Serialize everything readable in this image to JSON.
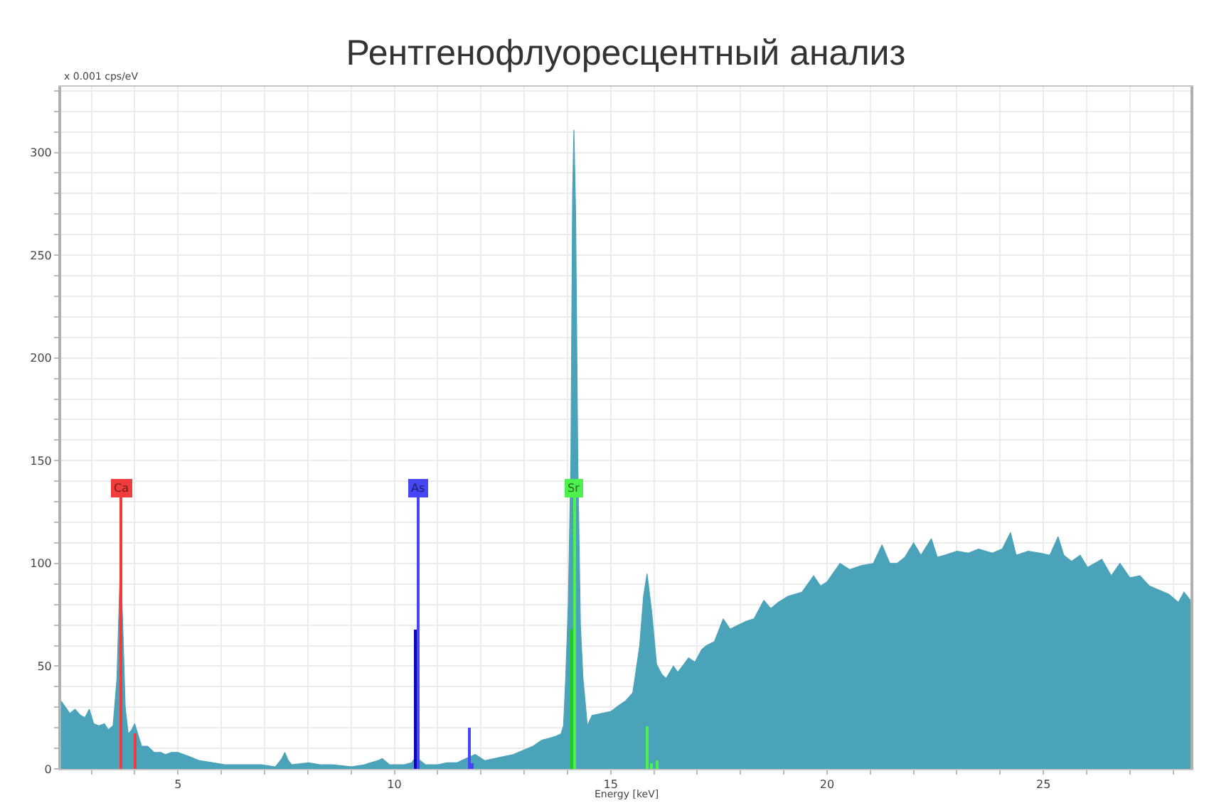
{
  "chart_data": {
    "type": "area",
    "title": "Рентгенофлуоресцентный анализ",
    "xlabel": "Energy [keV]",
    "ylabel": "x 0.001 cps/eV",
    "xlim": [
      2.3,
      28.4
    ],
    "ylim": [
      0,
      332
    ],
    "xticks": [
      {
        "value": 3,
        "label": null
      },
      {
        "value": 4,
        "label": null
      },
      5,
      {
        "value": 6,
        "label": null
      },
      {
        "value": 7,
        "label": null
      },
      {
        "value": 8,
        "label": null
      },
      {
        "value": 9,
        "label": null
      },
      10,
      {
        "value": 11,
        "label": null
      },
      {
        "value": 12,
        "label": null
      },
      {
        "value": 13,
        "label": null
      },
      {
        "value": 14,
        "label": null
      },
      15,
      {
        "value": 16,
        "label": null
      },
      {
        "value": 17,
        "label": null
      },
      {
        "value": 18,
        "label": null
      },
      {
        "value": 19,
        "label": null
      },
      20,
      {
        "value": 21,
        "label": null
      },
      {
        "value": 22,
        "label": null
      },
      {
        "value": 23,
        "label": null
      },
      {
        "value": 24,
        "label": null
      },
      25,
      {
        "value": 26,
        "label": null
      },
      {
        "value": 27,
        "label": null
      },
      {
        "value": 28,
        "label": null
      }
    ],
    "yticks": [
      0,
      {
        "value": 10,
        "label": null
      },
      {
        "value": 20,
        "label": null
      },
      {
        "value": 30,
        "label": null
      },
      {
        "value": 40,
        "label": null
      },
      50,
      {
        "value": 60,
        "label": null
      },
      {
        "value": 70,
        "label": null
      },
      {
        "value": 80,
        "label": null
      },
      {
        "value": 90,
        "label": null
      },
      100,
      {
        "value": 110,
        "label": null
      },
      {
        "value": 120,
        "label": null
      },
      {
        "value": 130,
        "label": null
      },
      {
        "value": 140,
        "label": null
      },
      150,
      {
        "value": 160,
        "label": null
      },
      {
        "value": 170,
        "label": null
      },
      {
        "value": 180,
        "label": null
      },
      {
        "value": 190,
        "label": null
      },
      200,
      {
        "value": 210,
        "label": null
      },
      {
        "value": 220,
        "label": null
      },
      {
        "value": 230,
        "label": null
      },
      {
        "value": 240,
        "label": null
      },
      250,
      {
        "value": 260,
        "label": null
      },
      {
        "value": 270,
        "label": null
      },
      {
        "value": 280,
        "label": null
      },
      {
        "value": 290,
        "label": null
      },
      300,
      {
        "value": 310,
        "label": null
      },
      {
        "value": 320,
        "label": null
      },
      {
        "value": 330,
        "label": null
      }
    ],
    "grid": true,
    "series": [
      {
        "color": "#4ba3b9",
        "x": [
          2.3,
          2.4,
          2.5,
          2.62,
          2.75,
          2.85,
          2.95,
          3.05,
          3.17,
          3.3,
          3.39,
          3.5,
          3.59,
          3.64,
          3.67,
          3.72,
          3.78,
          3.85,
          3.93,
          4.0,
          4.07,
          4.16,
          4.3,
          4.45,
          4.6,
          4.71,
          4.85,
          5.0,
          5.26,
          5.5,
          5.81,
          6.1,
          6.37,
          6.7,
          6.92,
          7.25,
          7.4,
          7.47,
          7.55,
          7.63,
          8.02,
          8.3,
          8.57,
          9.01,
          9.3,
          9.45,
          9.62,
          9.72,
          9.89,
          10.22,
          10.4,
          10.5,
          10.6,
          10.72,
          11.0,
          11.21,
          11.45,
          11.65,
          11.87,
          11.95,
          12.09,
          12.3,
          12.53,
          12.75,
          12.97,
          13.2,
          13.41,
          13.6,
          13.74,
          13.85,
          13.91,
          13.96,
          14.02,
          14.08,
          14.12,
          14.15,
          14.19,
          14.24,
          14.3,
          14.36,
          14.4,
          14.46,
          14.57,
          14.8,
          15.01,
          15.2,
          15.34,
          15.51,
          15.67,
          15.76,
          15.84,
          15.95,
          16.06,
          16.18,
          16.28,
          16.45,
          16.55,
          16.66,
          16.8,
          16.95,
          17.1,
          17.21,
          17.4,
          17.6,
          17.76,
          17.95,
          18.15,
          18.31,
          18.54,
          18.7,
          18.87,
          19.1,
          19.42,
          19.69,
          19.85,
          20.0,
          20.3,
          20.52,
          20.8,
          21.07,
          21.27,
          21.45,
          21.62,
          21.8,
          22.0,
          22.17,
          22.41,
          22.55,
          22.72,
          23.0,
          23.27,
          23.5,
          23.82,
          24.05,
          24.24,
          24.37,
          24.65,
          24.92,
          25.15,
          25.34,
          25.47,
          25.65,
          25.85,
          26.02,
          26.35,
          26.57,
          26.77,
          27.0,
          27.23,
          27.45,
          27.68,
          27.9,
          28.12,
          28.25,
          28.4
        ],
        "values": [
          33,
          30,
          27,
          29,
          26,
          25,
          29,
          22,
          21,
          22,
          19,
          21,
          44,
          80,
          102,
          72,
          30,
          17,
          19,
          22,
          17,
          11,
          11,
          8,
          8,
          7,
          8,
          8,
          6,
          4,
          3,
          2,
          2,
          2,
          2,
          1,
          5,
          8,
          4,
          2,
          3,
          2,
          2,
          1,
          2,
          3,
          4,
          5,
          2,
          2,
          3,
          6,
          4,
          2,
          2,
          3,
          3,
          5,
          7,
          6,
          4,
          5,
          6,
          7,
          9,
          11,
          14,
          15,
          16,
          17,
          21,
          44,
          80,
          150,
          280,
          311,
          270,
          150,
          70,
          44,
          35,
          21,
          26,
          27,
          28,
          31,
          33,
          37,
          60,
          84,
          95,
          76,
          51,
          46,
          44,
          50,
          47,
          50,
          54,
          52,
          58,
          60,
          62,
          73,
          68,
          70,
          72,
          73,
          82,
          78,
          81,
          84,
          86,
          94,
          89,
          91,
          100,
          97,
          99,
          100,
          109,
          100,
          100,
          103,
          110,
          104,
          112,
          103,
          104,
          106,
          105,
          107,
          105,
          107,
          115,
          104,
          106,
          105,
          104,
          113,
          104,
          101,
          104,
          98,
          102,
          94,
          100,
          93,
          94,
          89,
          87,
          85,
          81,
          86,
          82
        ]
      },
      {
        "type": "bar",
        "name": "Ca",
        "color": "#f03c3c",
        "x": [
          3.69,
          4.01
        ],
        "values": [
          132,
          17
        ]
      },
      {
        "type": "bar",
        "name": "As",
        "color": "#4646f5",
        "colors": [
          "#0a0ab4",
          "#4646f5",
          "#4646f5",
          "#4646f5"
        ],
        "x": [
          10.5,
          10.54,
          11.73,
          11.8
        ],
        "values": [
          68,
          132,
          20,
          3
        ]
      },
      {
        "type": "bar",
        "name": "Sr",
        "color": "#4ef04e",
        "colors": [
          "#22c822",
          "#4ef04e",
          "#4ef04e",
          "#4ef04e",
          "#4ef04e"
        ],
        "x": [
          14.1,
          14.16,
          15.84,
          15.95,
          16.07
        ],
        "values": [
          68,
          132,
          21,
          3,
          4
        ]
      }
    ]
  }
}
